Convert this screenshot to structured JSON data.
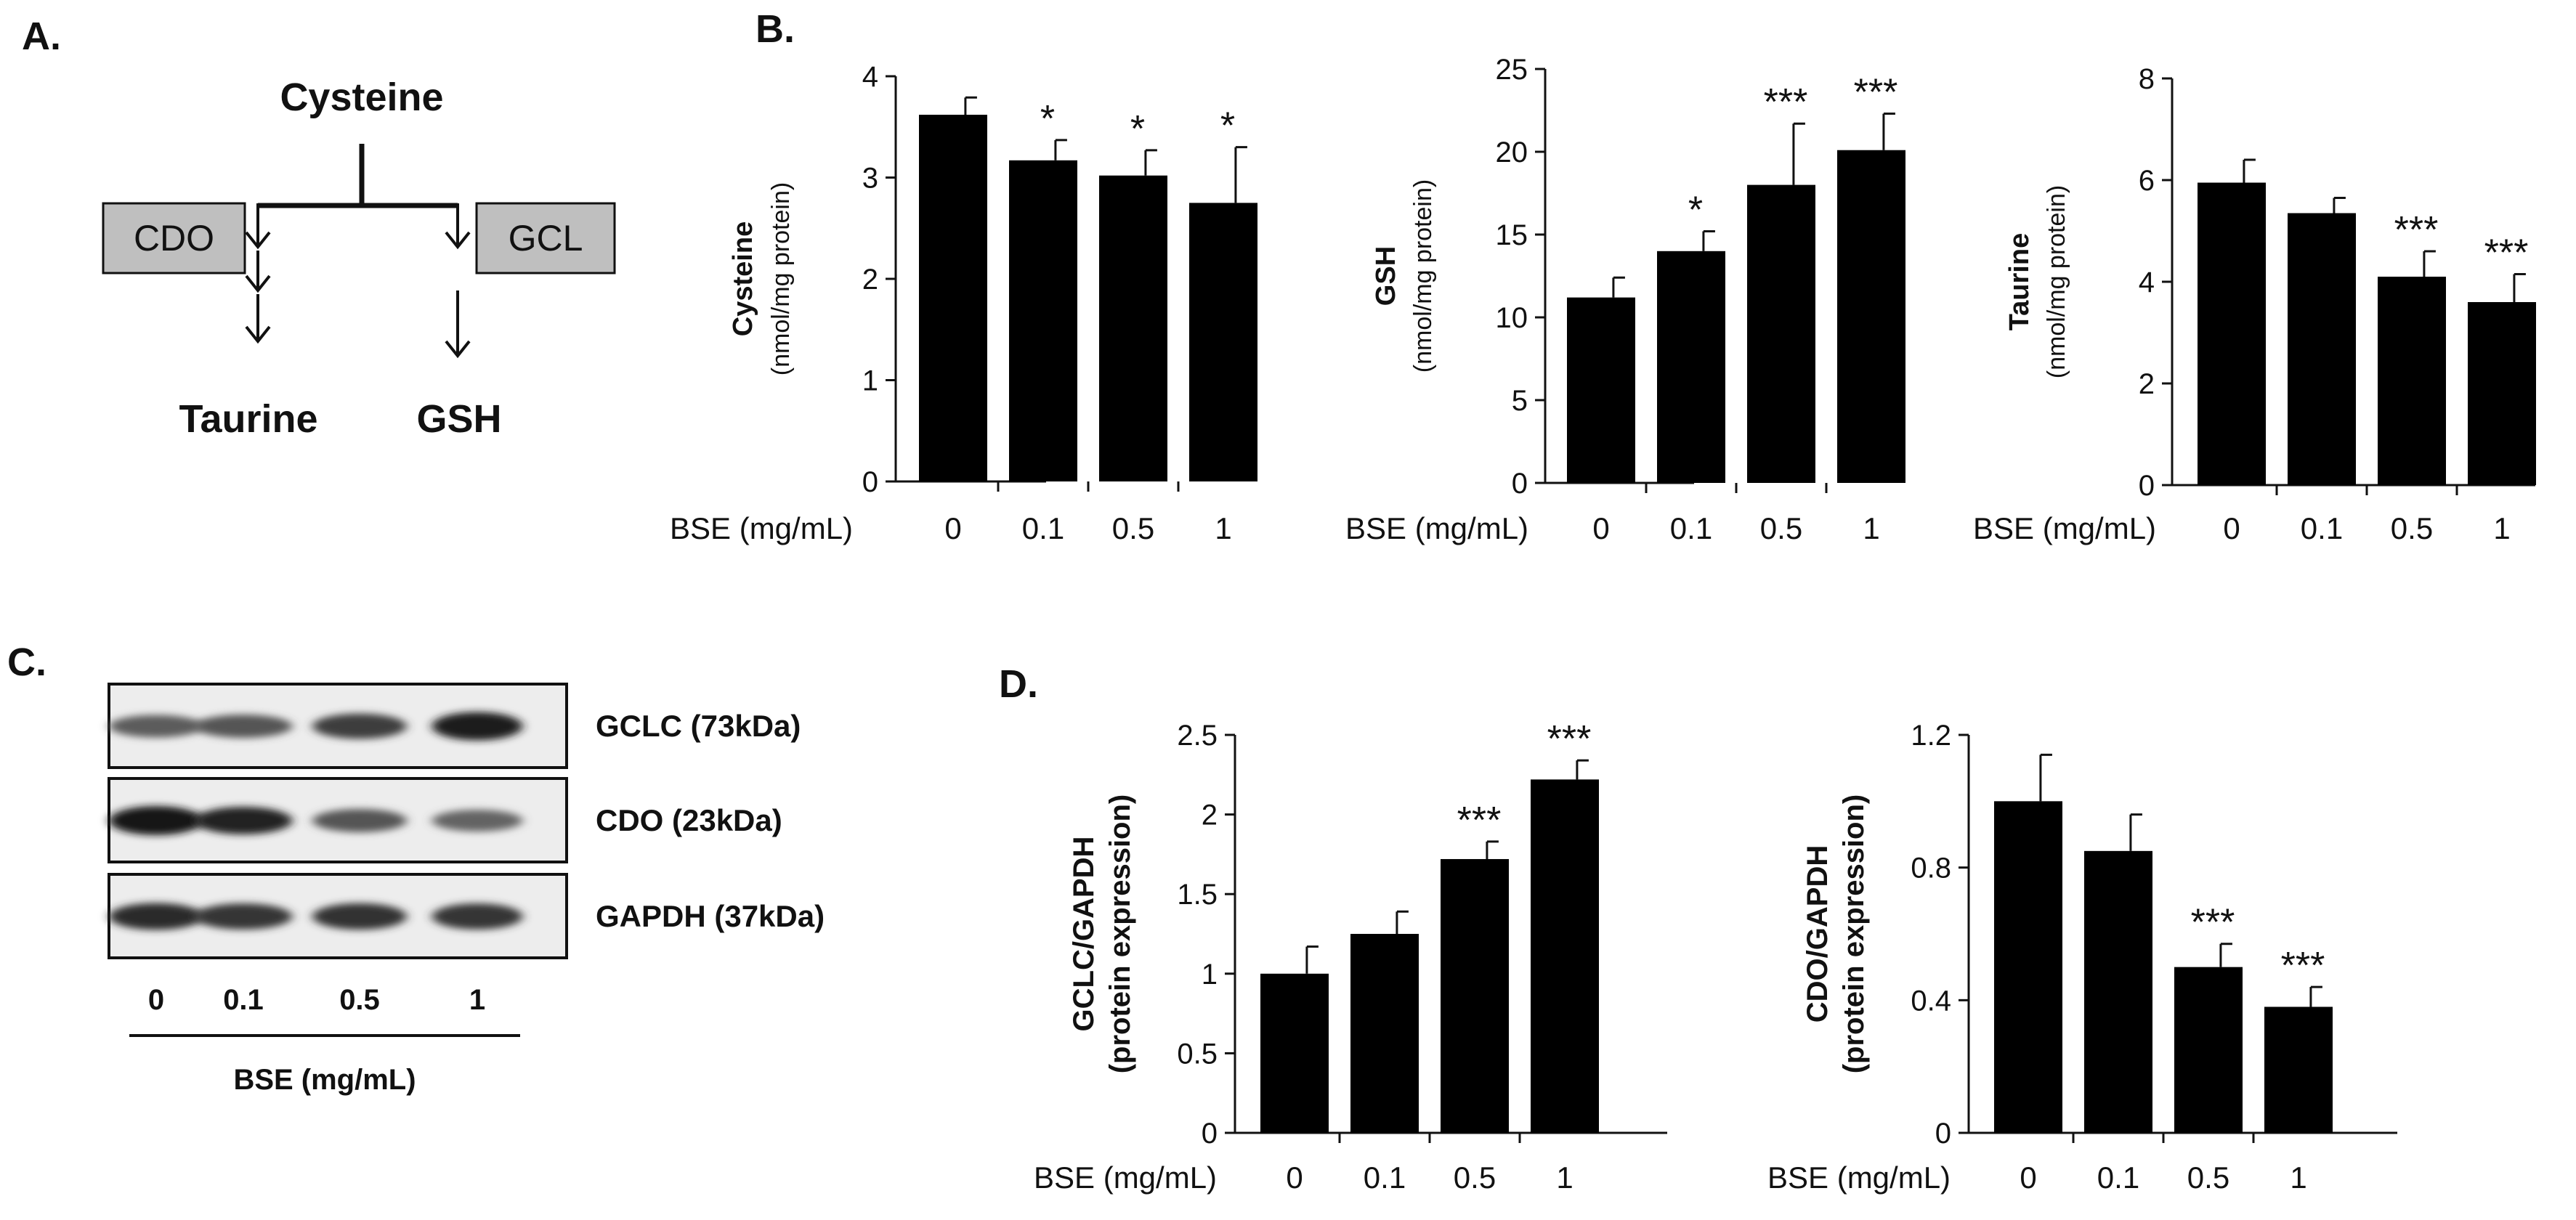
{
  "panels": {
    "a": {
      "label": "A.",
      "substrate": "Cysteine",
      "left_enzyme": "CDO",
      "right_enzyme": "GCL",
      "left_product": "Taurine",
      "right_product": "GSH"
    },
    "b": {
      "label": "B."
    },
    "c": {
      "label": "C.",
      "blots": [
        {
          "label": "GCLC (73kDa)",
          "intensities": [
            0.55,
            0.6,
            0.75,
            0.95
          ]
        },
        {
          "label": "CDO (23kDa)",
          "intensities": [
            1.0,
            0.9,
            0.6,
            0.5
          ]
        },
        {
          "label": "GAPDH (37kDa)",
          "intensities": [
            0.85,
            0.8,
            0.82,
            0.8
          ]
        }
      ],
      "lanes": [
        "0",
        "0.1",
        "0.5",
        "1"
      ],
      "xlabel": "BSE (mg/mL)"
    },
    "d": {
      "label": "D."
    }
  },
  "chart_data": [
    {
      "id": "b1",
      "type": "bar",
      "categories": [
        "0",
        "0.1",
        "0.5",
        "1"
      ],
      "values": [
        3.62,
        3.17,
        3.02,
        2.75
      ],
      "errors": [
        0.17,
        0.2,
        0.25,
        0.55
      ],
      "significance": [
        "",
        "*",
        "*",
        "*"
      ],
      "xlabel": "BSE (mg/mL)",
      "ylabel": "Cysteine",
      "ylabel_sub": "(nmol/mg protein)",
      "ylim": [
        0,
        4
      ],
      "yticks": [
        "0",
        "1",
        "2",
        "3",
        "4"
      ]
    },
    {
      "id": "b2",
      "type": "bar",
      "categories": [
        "0",
        "0.1",
        "0.5",
        "1"
      ],
      "values": [
        11.2,
        14.0,
        18.0,
        20.1
      ],
      "errors": [
        1.2,
        1.2,
        3.7,
        2.2
      ],
      "significance": [
        "",
        "*",
        "***",
        "***"
      ],
      "xlabel": "BSE (mg/mL)",
      "ylabel": "GSH",
      "ylabel_sub": "(nmol/mg protein)",
      "ylim": [
        0,
        25
      ],
      "yticks": [
        "0",
        "5",
        "10",
        "15",
        "20",
        "25"
      ]
    },
    {
      "id": "b3",
      "type": "bar",
      "categories": [
        "0",
        "0.1",
        "0.5",
        "1"
      ],
      "values": [
        5.95,
        5.35,
        4.1,
        3.6
      ],
      "errors": [
        0.45,
        0.3,
        0.5,
        0.55
      ],
      "significance": [
        "",
        "",
        "***",
        "***"
      ],
      "xlabel": "BSE (mg/mL)",
      "ylabel": "Taurine",
      "ylabel_sub": "(nmol/mg protein)",
      "ylim": [
        0,
        8
      ],
      "yticks": [
        "0",
        "2",
        "4",
        "6",
        "8"
      ]
    },
    {
      "id": "d1",
      "type": "bar",
      "categories": [
        "0",
        "0.1",
        "0.5",
        "1"
      ],
      "values": [
        1.0,
        1.25,
        1.72,
        2.22
      ],
      "errors": [
        0.17,
        0.14,
        0.11,
        0.12
      ],
      "significance": [
        "",
        "",
        "***",
        "***"
      ],
      "xlabel": "BSE (mg/mL)",
      "ylabel": "GCLC/GAPDH",
      "ylabel_sub": "(protein expression)",
      "ylim": [
        0,
        2.5
      ],
      "yticks": [
        "0",
        "0.5",
        "1",
        "1.5",
        "2",
        "2.5"
      ]
    },
    {
      "id": "d2",
      "type": "bar",
      "categories": [
        "0",
        "0.1",
        "0.5",
        "1"
      ],
      "values": [
        1.0,
        0.85,
        0.5,
        0.38
      ],
      "errors": [
        0.14,
        0.11,
        0.07,
        0.06
      ],
      "significance": [
        "",
        "",
        "***",
        "***"
      ],
      "xlabel": "BSE (mg/mL)",
      "ylabel": "CDO/GAPDH",
      "ylabel_sub": "(protein expression)",
      "ylim": [
        0,
        1.2
      ],
      "yticks": [
        "0",
        "0.4",
        "0.8",
        "1.2"
      ]
    }
  ]
}
